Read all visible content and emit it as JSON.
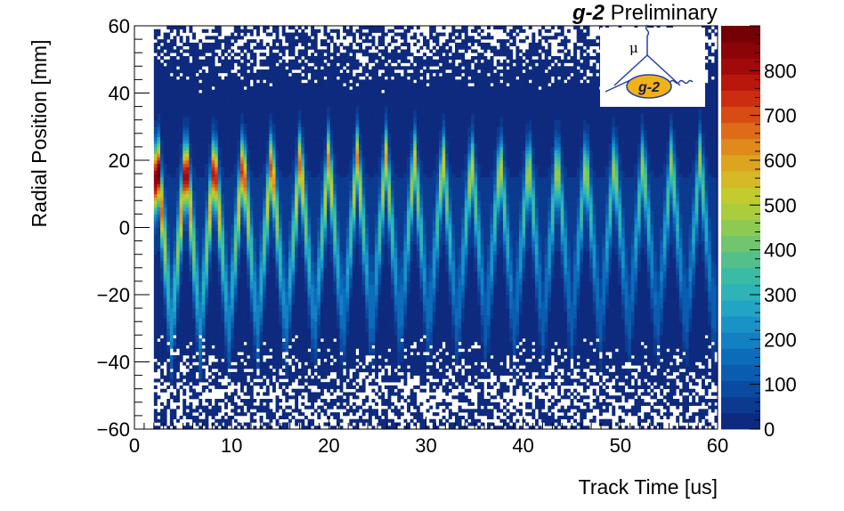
{
  "chart_data": {
    "type": "heatmap",
    "title_bold": "g-2",
    "title_rest": " Preliminary",
    "xlabel": "Track Time [us]",
    "ylabel": "Radial Position [mm]",
    "xlim": [
      0,
      60
    ],
    "ylim": [
      -60,
      60
    ],
    "x_ticks": [
      "0",
      "10",
      "20",
      "30",
      "40",
      "50",
      "60"
    ],
    "y_ticks": [
      "−60",
      "−40",
      "−20",
      "0",
      "20",
      "40",
      "60"
    ],
    "z_ticks": [
      "0",
      "100",
      "200",
      "300",
      "400",
      "500",
      "600",
      "700",
      "800"
    ],
    "zlim": [
      0,
      900
    ],
    "data_start_x": 2.0,
    "oscillation": {
      "period_us": 2.94,
      "first_peak_us": 5.3,
      "peak_center_mm": 21,
      "lower_turning_mm": -30,
      "envelope_initial_max": 880,
      "envelope_late_max": 400
    },
    "logo": {
      "mu_label": "μ",
      "badge_label": "g-2"
    },
    "colors": {
      "palette": [
        "#0e2a7e",
        "#0b3a8f",
        "#0a4ba1",
        "#0a5cb0",
        "#0c6cba",
        "#1280c2",
        "#1992c6",
        "#22a5c4",
        "#2db3b8",
        "#3abba4",
        "#53c08b",
        "#70c56e",
        "#8dca52",
        "#aacc3d",
        "#c3cb2e",
        "#d5b926",
        "#dca41f",
        "#df8a1b",
        "#dd6b17",
        "#d64c13",
        "#cc2d10",
        "#b9160c",
        "#a10a0a",
        "#8a0408",
        "#740106"
      ],
      "badge_fill": "#f0b21a",
      "logo_lines": "#2540a0"
    }
  }
}
